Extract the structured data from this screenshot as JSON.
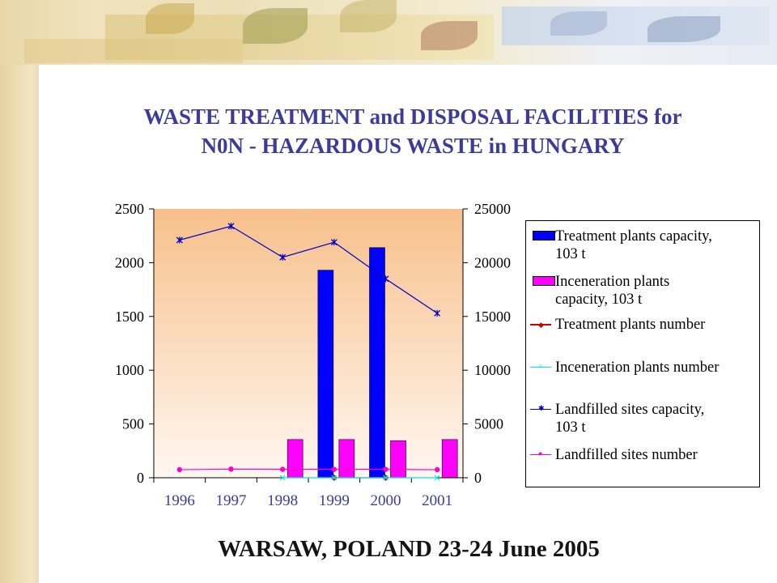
{
  "slide": {
    "title_line1": "WASTE TREATMENT and  DISPOSAL FACILITIES  for",
    "title_line2": "N0N - HAZARDOUS  WASTE in HUNGARY",
    "footer": "WARSAW, POLAND 23-24 June 2005"
  },
  "colors": {
    "title": "#3c3c98",
    "treatment_capacity": "#0000ff",
    "inceneration_capacity": "#ff00ff",
    "treatment_number": "#cc0000",
    "inceneration_number": "#00e6e6",
    "landfilled_capacity": "#0000c8",
    "landfilled_number": "#ff00cc",
    "plot_bg_top": "#f7c08b",
    "plot_bg_bottom": "#fff7f1"
  },
  "chart_data": {
    "type": "bar",
    "categories": [
      "1996",
      "1997",
      "1998",
      "1999",
      "2000",
      "2001"
    ],
    "y_left": {
      "min": 0,
      "max": 2500,
      "ticks": [
        "0",
        "500",
        "1000",
        "1500",
        "2000",
        "2500"
      ]
    },
    "y_right": {
      "min": 0,
      "max": 25000,
      "ticks": [
        "0",
        "5000",
        "10000",
        "15000",
        "20000",
        "25000"
      ]
    },
    "grid": false,
    "legend_position": "right",
    "series": [
      {
        "name": "Treatment plants capacity, 103 t",
        "type": "bar",
        "axis": "left",
        "color": "#0000ff",
        "values": [
          null,
          null,
          null,
          1930,
          2140,
          null
        ]
      },
      {
        "name": "Inceneration plants capacity, 103 t",
        "type": "bar",
        "axis": "left",
        "color": "#ff00ff",
        "values": [
          null,
          null,
          355,
          355,
          345,
          355
        ]
      },
      {
        "name": "Treatment plants number",
        "type": "line",
        "axis": "left",
        "color": "#cc0000",
        "marker": "diamond",
        "values": [
          null,
          null,
          null,
          0,
          0,
          null
        ]
      },
      {
        "name": "Inceneration plants number",
        "type": "line",
        "axis": "left",
        "color": "#00e6e6",
        "marker": "x",
        "values": [
          null,
          null,
          0,
          0,
          0,
          0
        ]
      },
      {
        "name": "Landfilled sites capacity, 103 t",
        "type": "line",
        "axis": "right",
        "color": "#0000c8",
        "marker": "asterisk",
        "values": [
          22100,
          23400,
          20500,
          21900,
          18500,
          15300
        ]
      },
      {
        "name": "Landfilled sites number",
        "type": "line",
        "axis": "left",
        "color": "#ff00cc",
        "marker": "dot",
        "values": [
          75,
          80,
          78,
          78,
          78,
          75
        ]
      }
    ]
  },
  "legend": {
    "items": [
      {
        "line1": "Treatment plants capacity,",
        "line2": "103 t"
      },
      {
        "line1": "Inceneration plants",
        "line2": "capacity, 103 t"
      },
      {
        "line1": "Treatment plants number",
        "line2": ""
      },
      {
        "line1": "Inceneration plants number",
        "line2": ""
      },
      {
        "line1": "Landfilled sites capacity,",
        "line2": "103 t"
      },
      {
        "line1": "Landfilled sites number",
        "line2": ""
      }
    ]
  }
}
